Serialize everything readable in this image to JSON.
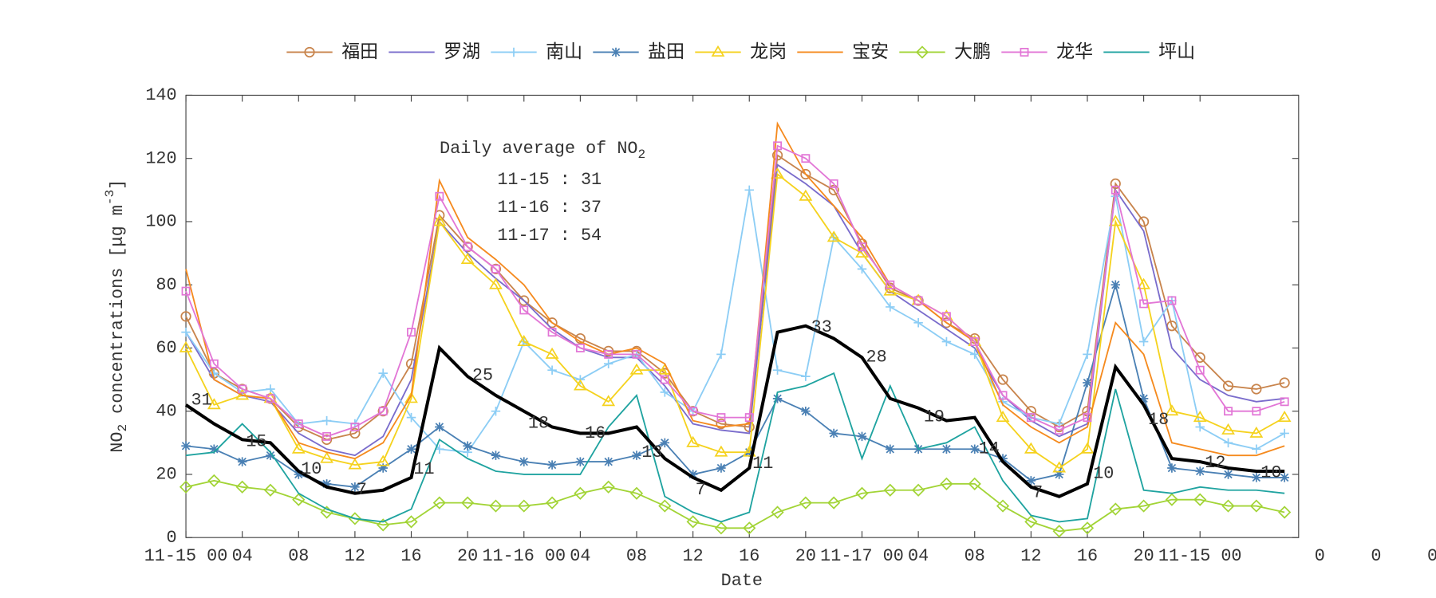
{
  "chart_data": {
    "type": "line",
    "xlabel": "Date",
    "ylabel": {
      "text": "NO",
      "sub": "2",
      "middle": " concentrations [μg m",
      "sup": "-3",
      "end": "]"
    },
    "info_box": {
      "title": "Daily average of NO",
      "title_sub": "2",
      "lines": [
        "11-15 : 31",
        "11-16 : 37",
        "11-17 : 54"
      ]
    },
    "x": [
      0,
      2,
      4,
      6,
      8,
      10,
      12,
      14,
      16,
      18,
      20,
      22,
      24,
      26,
      28,
      30,
      32,
      34,
      36,
      38,
      40,
      42,
      44,
      46,
      48,
      50,
      52,
      54,
      56,
      58,
      60,
      62,
      64,
      66,
      68,
      70,
      72,
      74,
      76,
      78
    ],
    "xlim": [
      0,
      79
    ],
    "xticks": [
      {
        "value": 0,
        "label": "11-15 00"
      },
      {
        "value": 4,
        "label": "04"
      },
      {
        "value": 8,
        "label": "08"
      },
      12,
      16,
      20,
      {
        "value": 24,
        "label": "11-16 00"
      },
      {
        "value": 28,
        "label": "04"
      },
      {
        "value": 32,
        "label": "08"
      },
      {
        "value": 36,
        "label": "12"
      },
      {
        "value": 40,
        "label": "16"
      },
      {
        "value": 44,
        "label": "20"
      },
      {
        "value": 48,
        "label": "11-17 00"
      },
      {
        "value": 52,
        "label": "04"
      },
      {
        "value": 56,
        "label": "08"
      },
      {
        "value": 60,
        "label": "12"
      },
      {
        "value": 64,
        "label": "16"
      },
      {
        "value": 68,
        "label": "20"
      },
      {
        "value": 72,
        "label": "11-15 00"
      },
      {
        "value": 80.5,
        "label": "0"
      },
      {
        "value": 84.5,
        "label": "0"
      },
      {
        "value": 88.5,
        "label": "0"
      }
    ],
    "ylim": [
      0,
      140
    ],
    "yticks": [
      0,
      20,
      40,
      60,
      80,
      100,
      120,
      140
    ],
    "legend": "top",
    "series": [
      {
        "name": "福田",
        "color": "#c8844c",
        "marker": "circle",
        "values": [
          70,
          52,
          47,
          44,
          35,
          31,
          33,
          40,
          55,
          102,
          92,
          85,
          75,
          68,
          63,
          59,
          59,
          52,
          40,
          36,
          35,
          121,
          115,
          110,
          93,
          79,
          75,
          68,
          63,
          50,
          40,
          35,
          40,
          112,
          100,
          67,
          57,
          48,
          47,
          49
        ]
      },
      {
        "name": "罗湖",
        "color": "#7a6ccc",
        "marker": "none",
        "values": [
          65,
          50,
          45,
          43,
          33,
          28,
          26,
          32,
          50,
          100,
          90,
          82,
          75,
          66,
          60,
          57,
          57,
          48,
          36,
          34,
          33,
          118,
          112,
          105,
          90,
          78,
          72,
          66,
          60,
          45,
          37,
          32,
          36,
          110,
          97,
          60,
          50,
          45,
          43,
          44
        ]
      },
      {
        "name": "南山",
        "color": "#8ccdf5",
        "marker": "plus",
        "values": [
          65,
          52,
          46,
          47,
          36,
          37,
          36,
          52,
          38,
          28,
          27,
          40,
          62,
          53,
          50,
          55,
          58,
          46,
          40,
          58,
          110,
          53,
          51,
          95,
          85,
          73,
          68,
          62,
          58,
          43,
          38,
          36,
          58,
          108,
          62,
          75,
          35,
          30,
          28,
          33
        ]
      },
      {
        "name": "盐田",
        "color": "#4a80b4",
        "marker": "star",
        "values": [
          29,
          28,
          24,
          26,
          20,
          17,
          16,
          22,
          28,
          35,
          29,
          26,
          24,
          23,
          24,
          24,
          26,
          30,
          20,
          22,
          27,
          44,
          40,
          33,
          32,
          28,
          28,
          28,
          28,
          25,
          18,
          20,
          49,
          80,
          44,
          22,
          21,
          20,
          19,
          19
        ]
      },
      {
        "name": "龙岗",
        "color": "#f5d21e",
        "marker": "triangle",
        "values": [
          60,
          42,
          45,
          44,
          28,
          25,
          23,
          24,
          44,
          100,
          88,
          80,
          62,
          58,
          48,
          43,
          53,
          53,
          30,
          27,
          27,
          115,
          108,
          95,
          90,
          78,
          75,
          70,
          62,
          38,
          28,
          22,
          28,
          100,
          80,
          40,
          38,
          34,
          33,
          38
        ]
      },
      {
        "name": "宝安",
        "color": "#f58a1e",
        "marker": "none",
        "values": [
          85,
          50,
          45,
          44,
          30,
          27,
          25,
          30,
          45,
          113,
          95,
          88,
          80,
          68,
          62,
          58,
          60,
          55,
          37,
          35,
          36,
          131,
          115,
          105,
          95,
          80,
          75,
          68,
          62,
          42,
          35,
          30,
          35,
          68,
          58,
          30,
          28,
          26,
          26,
          29
        ]
      },
      {
        "name": "大鹏",
        "color": "#a2d436",
        "marker": "diamond",
        "values": [
          16,
          18,
          16,
          15,
          12,
          8,
          6,
          4,
          5,
          11,
          11,
          10,
          10,
          11,
          14,
          16,
          14,
          10,
          5,
          3,
          3,
          8,
          11,
          11,
          14,
          15,
          15,
          17,
          17,
          10,
          5,
          2,
          3,
          9,
          10,
          12,
          12,
          10,
          10,
          8
        ]
      },
      {
        "name": "龙华",
        "color": "#e276d6",
        "marker": "square",
        "values": [
          78,
          55,
          47,
          44,
          36,
          32,
          35,
          40,
          65,
          108,
          92,
          85,
          72,
          65,
          60,
          58,
          58,
          50,
          40,
          38,
          38,
          124,
          120,
          112,
          92,
          80,
          75,
          70,
          62,
          45,
          38,
          34,
          38,
          110,
          74,
          75,
          53,
          40,
          40,
          43
        ]
      },
      {
        "name": "坪山",
        "color": "#1fa3a0",
        "marker": "none",
        "values": [
          26,
          27,
          36,
          27,
          14,
          9,
          6,
          5,
          9,
          31,
          25,
          21,
          20,
          20,
          20,
          35,
          45,
          13,
          8,
          5,
          8,
          46,
          48,
          52,
          25,
          48,
          28,
          30,
          35,
          18,
          7,
          5,
          6,
          47,
          15,
          14,
          16,
          15,
          15,
          14
        ]
      }
    ],
    "average": {
      "color": "#000000",
      "values": [
        42,
        36,
        31,
        30,
        21,
        16,
        14,
        15,
        19,
        60,
        51,
        45,
        40,
        35,
        33,
        33,
        35,
        25,
        19,
        15,
        22,
        65,
        67,
        63,
        57,
        44,
        41,
        37,
        38,
        24,
        16,
        13,
        17,
        54,
        42,
        25,
        24,
        22,
        21,
        21
      ]
    },
    "annotations": [
      "31",
      "15",
      "10",
      "7",
      "11",
      "25",
      "18",
      "16",
      "13",
      "7",
      "11",
      "33",
      "28",
      "19",
      "14",
      "7",
      "10",
      "18",
      "12",
      "10"
    ]
  }
}
